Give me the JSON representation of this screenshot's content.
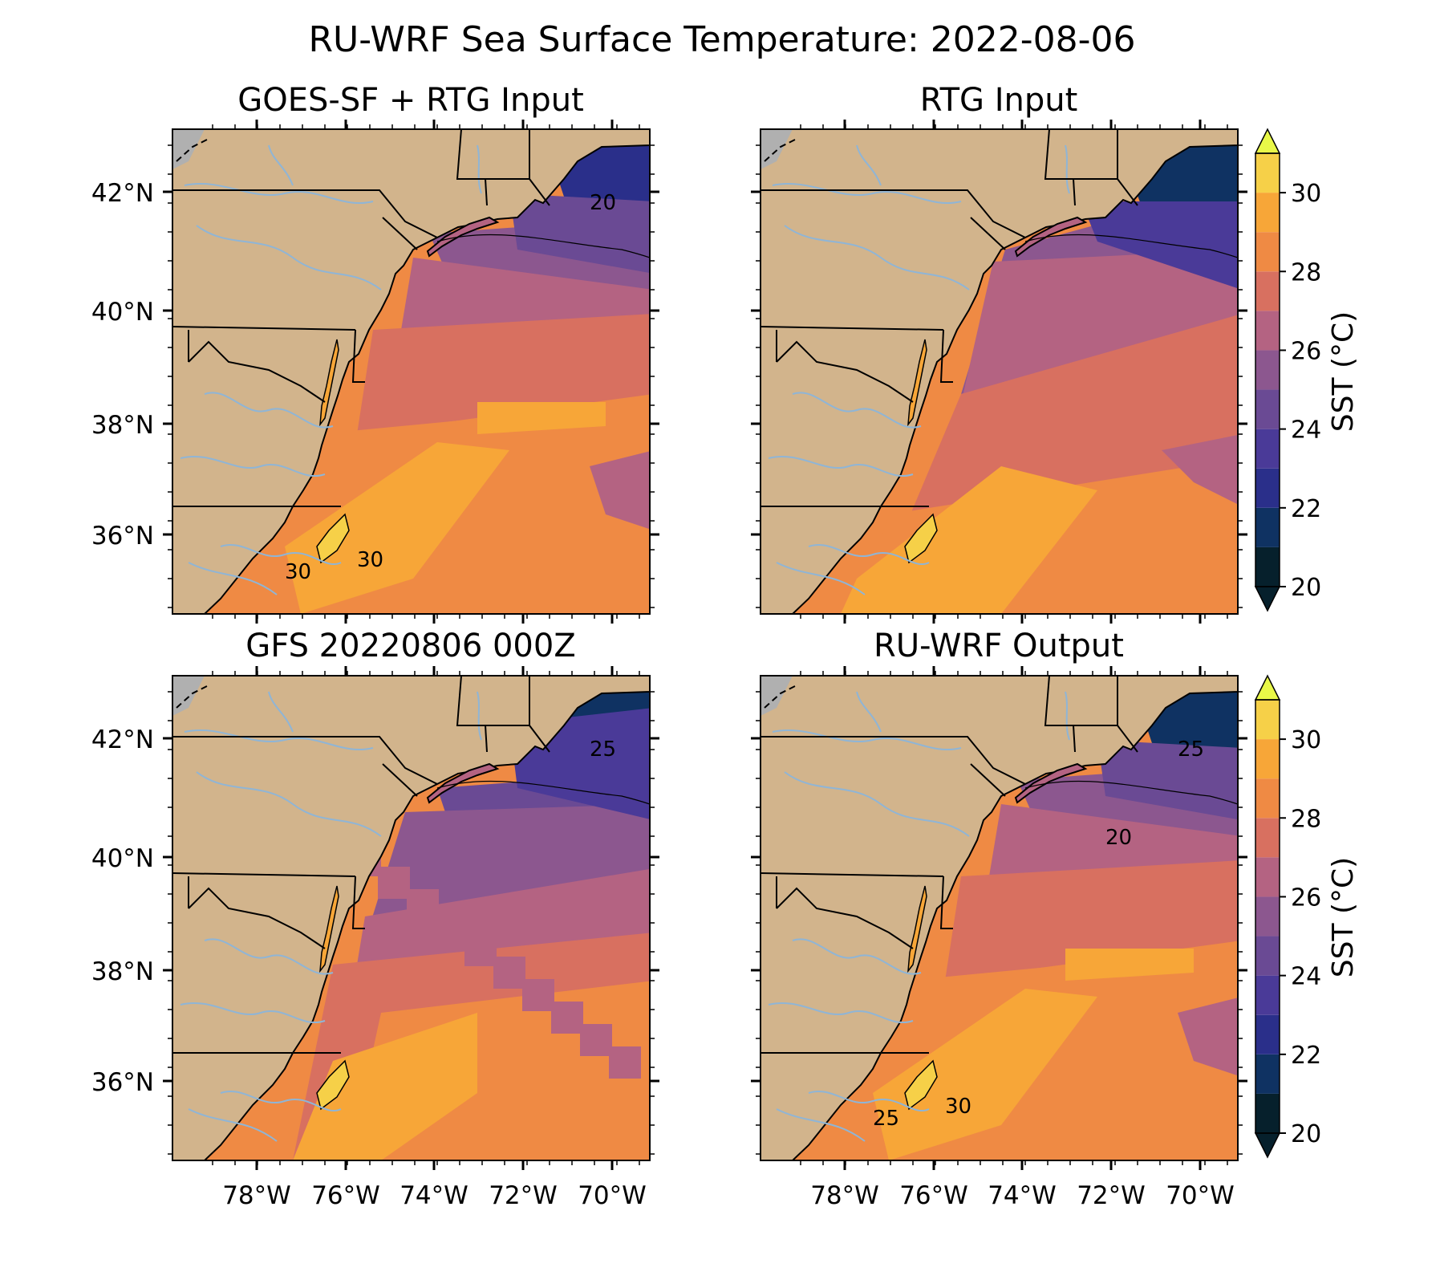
{
  "figure": {
    "title": "RU-WRF Sea Surface Temperature: 2022-08-06"
  },
  "panels": [
    {
      "title": "GOES-SF + RTG Input",
      "contours": [
        "20",
        "30",
        "30"
      ]
    },
    {
      "title": "RTG Input",
      "contours": []
    },
    {
      "title": "GFS 20220806 000Z",
      "contours": [
        "25"
      ]
    },
    {
      "title": "RU-WRF Output",
      "contours": [
        "25",
        "25",
        "30",
        "20"
      ]
    }
  ],
  "axes": {
    "lat_labels": [
      "42°N",
      "40°N",
      "38°N",
      "36°N"
    ],
    "lon_labels": [
      "78°W",
      "76°W",
      "74°W",
      "72°W",
      "70°W"
    ]
  },
  "colorbar": {
    "label": "SST (°C)",
    "tick_labels": [
      "20",
      "22",
      "24",
      "26",
      "28",
      "30"
    ],
    "range": [
      20,
      31
    ],
    "extend": "both",
    "levels": [
      20,
      21,
      22,
      23,
      24,
      25,
      26,
      27,
      28,
      29,
      30,
      31
    ],
    "colors": [
      "#06202c",
      "#0f3262",
      "#2a2f8a",
      "#4a3a98",
      "#6a4a94",
      "#8c578f",
      "#b46382",
      "#d87060",
      "#ef8a44",
      "#f7a638",
      "#f6d048",
      "#e9f848"
    ]
  },
  "colors": {
    "land": "#d2b48c",
    "lake": "#b0b0b0",
    "river": "#8fb5d6",
    "border": "#000000"
  }
}
